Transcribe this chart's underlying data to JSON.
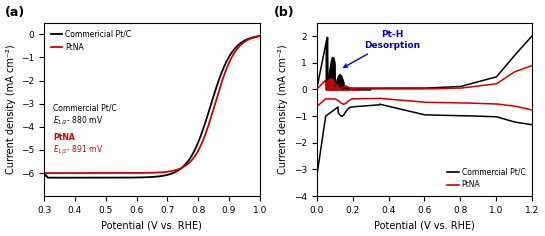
{
  "panel_a": {
    "title": "(a)",
    "xlabel": "Potential (V vs. RHE)",
    "ylabel": "Current density (mA cm⁻²)",
    "xlim": [
      0.3,
      1.0
    ],
    "ylim": [
      -7,
      0.5
    ],
    "yticks": [
      0,
      -1,
      -2,
      -3,
      -4,
      -5,
      -6
    ],
    "xticks": [
      0.3,
      0.4,
      0.5,
      0.6,
      0.7,
      0.8,
      0.9,
      1.0
    ],
    "legend": [
      "Commericial Pt/C",
      "PtNA"
    ],
    "line_black_color": "#000000",
    "line_red_color": "#cc0000"
  },
  "panel_b": {
    "title": "(b)",
    "xlabel": "Potential (V vs. RHE)",
    "ylabel": "Current density (mA cm⁻²)",
    "xlim": [
      0.0,
      1.2
    ],
    "ylim": [
      -4,
      2.5
    ],
    "yticks": [
      -4,
      -3,
      -2,
      -1,
      0,
      1,
      2
    ],
    "xticks": [
      0.0,
      0.2,
      0.4,
      0.6,
      0.8,
      1.0,
      1.2
    ],
    "annotation": "Pt-H\nDesorption",
    "annotation_color": "#0000cc",
    "legend": [
      "Commercial Pt/C",
      "PtNA"
    ],
    "line_black_color": "#000000",
    "line_red_color": "#cc0000"
  }
}
